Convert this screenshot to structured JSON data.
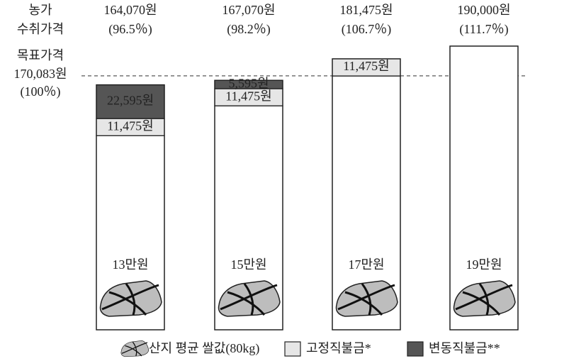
{
  "chart_data": {
    "type": "stacked_bar",
    "y_label_lines": [
      "농가",
      "수취가격"
    ],
    "totals": [
      164070,
      167070,
      181475,
      190000
    ],
    "total_labels": [
      "164,070원",
      "167,070원",
      "181,475원",
      "190,000원"
    ],
    "share_labels": [
      "(96.5％)",
      "(98.2％)",
      "(106.7％)",
      "(111.7％)"
    ],
    "target": {
      "label": "목표가격",
      "value": 170083,
      "value_label": "170,083원",
      "share_label": "(100％)"
    },
    "series": [
      {
        "name": "산지 평균 쌀값(80kg)",
        "color": "#ffffff",
        "values": [
          130000,
          150000,
          170000,
          190000
        ],
        "value_labels": [
          "13만원",
          "15만원",
          "17만원",
          "19만원"
        ]
      },
      {
        "name": "고정직불금*",
        "color": "#e6e6e6",
        "values": [
          11475,
          11475,
          11475,
          null
        ],
        "value_labels": [
          "11,475원",
          "11,475원",
          "11,475원",
          null
        ]
      },
      {
        "name": "변동직불금**",
        "color": "#555555",
        "values": [
          22595,
          5595,
          null,
          null
        ],
        "value_labels": [
          "22,595원",
          "5,595원",
          null,
          null
        ]
      }
    ]
  }
}
